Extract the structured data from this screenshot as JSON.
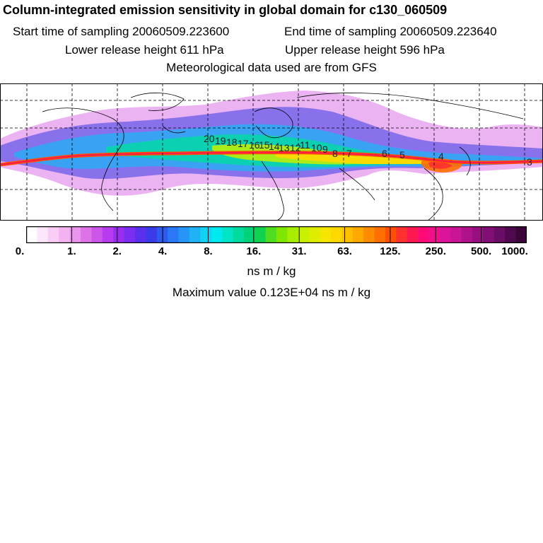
{
  "header": {
    "title": "Column-integrated emission sensitivity in global domain for c130_060509",
    "start_time": "Start time of sampling 20060509.223600",
    "end_time": "End time of sampling 20060509.223640",
    "lower_release": "Lower release height  611 hPa",
    "upper_release": "Upper release height  596 hPa",
    "met_data": "Meteorological data used are from GFS"
  },
  "map": {
    "trajectory_labels": [
      "20",
      "19",
      "18",
      "17",
      "16",
      "15",
      "14",
      "13",
      "12",
      "11",
      "10",
      "9",
      "8",
      "7",
      "6",
      "5",
      "4",
      "3"
    ]
  },
  "colorbar": {
    "tick_labels": [
      "0.",
      "1.",
      "2.",
      "4.",
      "8.",
      "16.",
      "31.",
      "63.",
      "125.",
      "250.",
      "500.",
      "1000."
    ],
    "colors": [
      "#ffffff",
      "#fde6fb",
      "#f9cdf5",
      "#f3b3f0",
      "#e995ec",
      "#dc74e8",
      "#cc55ea",
      "#b83bef",
      "#9a2ef0",
      "#7a2ef0",
      "#5a30ee",
      "#3b3ae8",
      "#2f5af0",
      "#2a78f5",
      "#2596f8",
      "#1fb3f5",
      "#12d2f4",
      "#00e8f0",
      "#00e5c8",
      "#00dca0",
      "#00d278",
      "#10d250",
      "#50dc20",
      "#80e600",
      "#a8ee00",
      "#c8f000",
      "#e0ec00",
      "#f4e600",
      "#ffd800",
      "#ffc000",
      "#ffa800",
      "#ff8c00",
      "#ff7000",
      "#ff5000",
      "#ff3030",
      "#ff1850",
      "#ff0c78",
      "#f0108c",
      "#dc149c",
      "#c81496",
      "#b0128c",
      "#981080",
      "#800e74",
      "#680c66",
      "#50084e",
      "#3a0638"
    ],
    "units": "ns m / kg",
    "max_value": "Maximum value  0.123E+04 ns m / kg"
  }
}
